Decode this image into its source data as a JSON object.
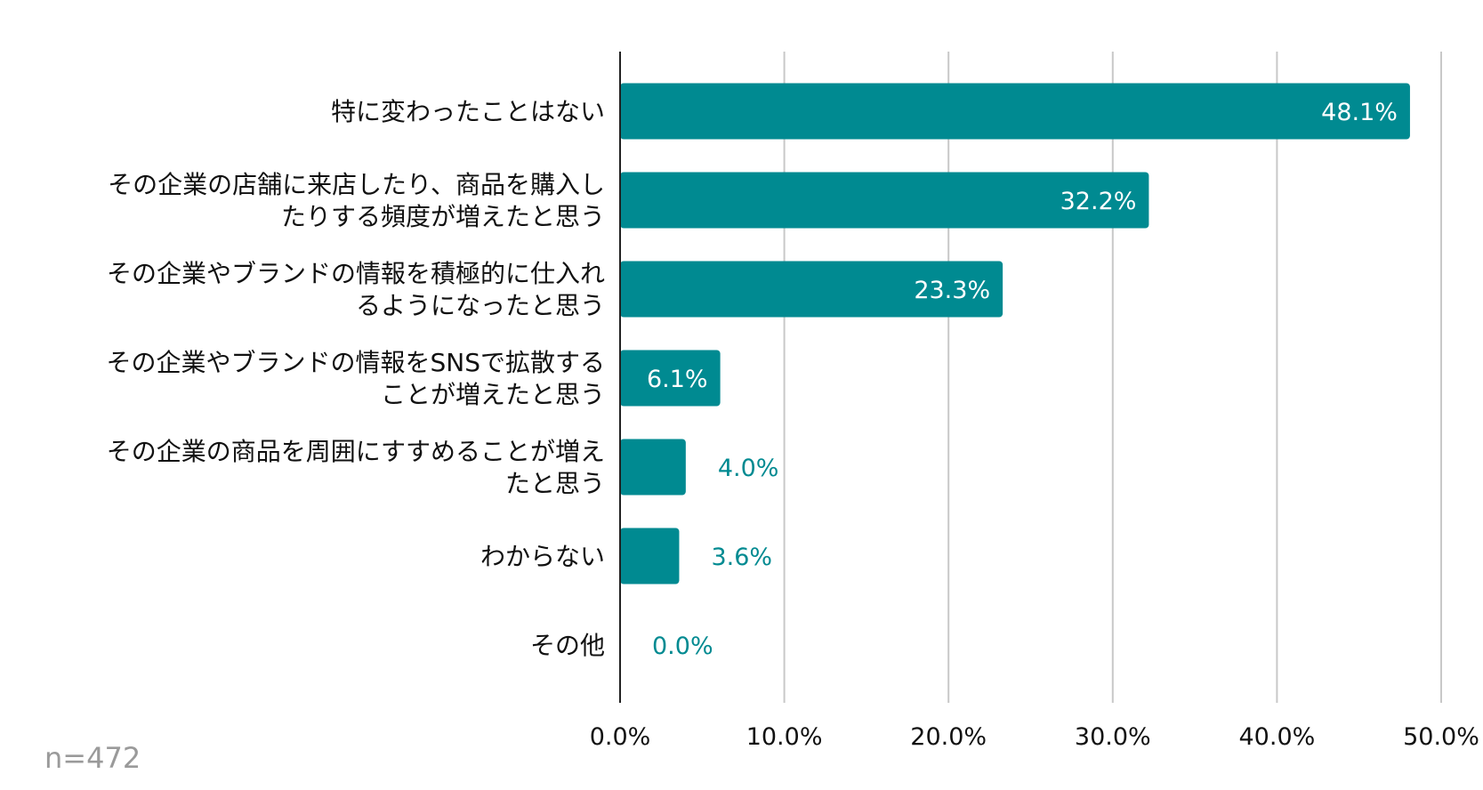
{
  "chart_data": {
    "type": "bar",
    "orientation": "horizontal",
    "title": "",
    "xlabel": "",
    "ylabel": "",
    "categories": [
      [
        "特に変わったことはない"
      ],
      [
        "その企業の店舗に来店したり、商品を購入し",
        "たりする頻度が増えたと思う"
      ],
      [
        "その企業やブランドの情報を積極的に仕入れ",
        "るようになったと思う"
      ],
      [
        "その企業やブランドの情報をSNSで拡散する",
        "ことが増えたと思う"
      ],
      [
        "その企業の商品を周囲にすすめることが増え",
        "たと思う"
      ],
      [
        "わからない"
      ],
      [
        "その他"
      ]
    ],
    "values": [
      48.1,
      32.2,
      23.3,
      6.1,
      4.0,
      3.6,
      0.0
    ],
    "value_labels": [
      "48.1%",
      "32.2%",
      "23.3%",
      "6.1%",
      "4.0%",
      "3.6%",
      "0.0%"
    ],
    "xlim": [
      0,
      50
    ],
    "xticks": [
      0,
      10,
      20,
      30,
      40,
      50
    ],
    "xtick_labels": [
      "0.0%",
      "10.0%",
      "20.0%",
      "30.0%",
      "40.0%",
      "50.0%"
    ],
    "grid": true,
    "legend": "none"
  },
  "note": "n=472",
  "colors": {
    "bar": "#008a91",
    "value_inside": "#ffffff",
    "value_outside": "#008a91",
    "grid": "#c8c8c8",
    "axis": "#222222",
    "text": "#111111",
    "note": "#9a9a9a"
  }
}
